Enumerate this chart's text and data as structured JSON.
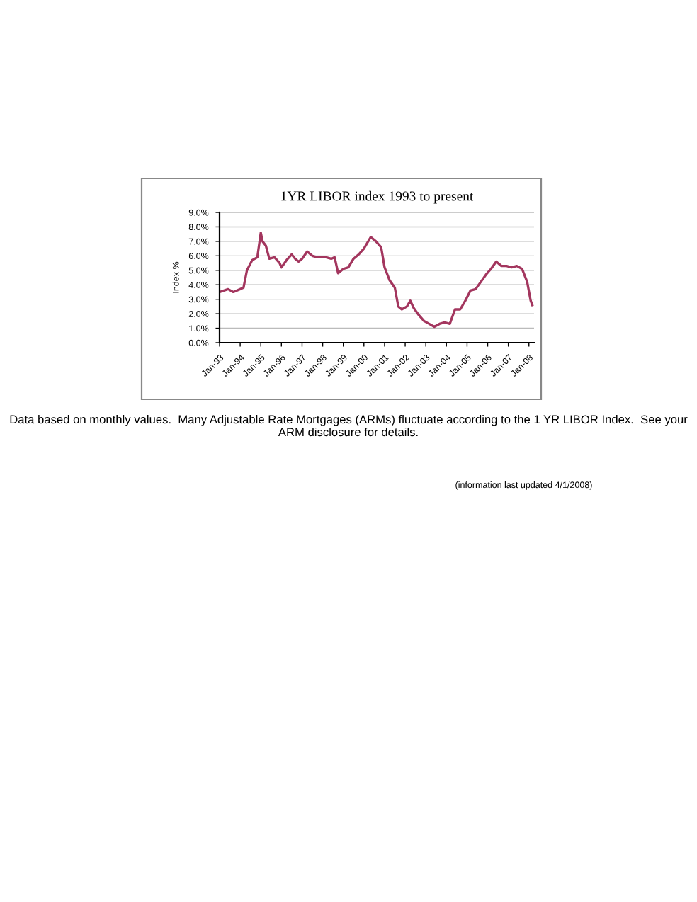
{
  "chart_data": {
    "type": "line",
    "title": "1YR LIBOR index 1993 to present",
    "ylabel": "Index %",
    "annotations": [
      "Data based on monthly values.  Many Adjustable Rate Mortgages (ARMs) fluctuate according to the 1 YR LIBOR Index.  See your ARM disclosure for details.",
      "(information last updated 4/1/2008)"
    ],
    "x": [
      "1993-01",
      "1993-06",
      "1993-09",
      "1994-01",
      "1994-03",
      "1994-05",
      "1994-08",
      "1994-11",
      "1995-01",
      "1995-02",
      "1995-04",
      "1995-06",
      "1995-09",
      "1995-12",
      "1996-01",
      "1996-04",
      "1996-07",
      "1996-09",
      "1996-11",
      "1997-01",
      "1997-04",
      "1997-07",
      "1997-10",
      "1998-01",
      "1998-03",
      "1998-06",
      "1998-08",
      "1998-10",
      "1999-01",
      "1999-04",
      "1999-07",
      "1999-10",
      "2000-01",
      "2000-05",
      "2000-08",
      "2000-11",
      "2001-01",
      "2001-04",
      "2001-07",
      "2001-09",
      "2001-11",
      "2002-02",
      "2002-04",
      "2002-06",
      "2002-09",
      "2002-12",
      "2003-03",
      "2003-06",
      "2003-09",
      "2003-12",
      "2004-03",
      "2004-06",
      "2004-09",
      "2004-12",
      "2005-03",
      "2005-06",
      "2005-09",
      "2005-12",
      "2006-03",
      "2006-06",
      "2006-09",
      "2006-12",
      "2007-03",
      "2007-06",
      "2007-09",
      "2007-12",
      "2008-02",
      "2008-03"
    ],
    "series": [
      {
        "color": "#a3365e",
        "values": [
          3.5,
          3.7,
          3.5,
          3.7,
          3.8,
          5.0,
          5.7,
          5.9,
          7.6,
          7.0,
          6.7,
          5.8,
          5.9,
          5.5,
          5.2,
          5.7,
          6.1,
          5.8,
          5.6,
          5.8,
          6.3,
          6.0,
          5.9,
          5.9,
          5.9,
          5.8,
          5.9,
          4.8,
          5.1,
          5.2,
          5.8,
          6.1,
          6.5,
          7.3,
          7.0,
          6.6,
          5.2,
          4.3,
          3.8,
          2.5,
          2.3,
          2.5,
          2.9,
          2.4,
          1.9,
          1.5,
          1.3,
          1.1,
          1.3,
          1.4,
          1.3,
          2.3,
          2.3,
          2.9,
          3.6,
          3.7,
          4.2,
          4.7,
          5.1,
          5.6,
          5.3,
          5.3,
          5.2,
          5.3,
          5.1,
          4.2,
          2.9,
          2.6
        ]
      }
    ],
    "xlim": [
      "1993-01",
      "2008-04"
    ],
    "xticks": [
      {
        "value": "1993-01",
        "label": "Jan-93"
      },
      {
        "value": "1994-01",
        "label": "Jan-94"
      },
      {
        "value": "1995-01",
        "label": "Jan-95"
      },
      {
        "value": "1996-01",
        "label": "Jan-96"
      },
      {
        "value": "1997-01",
        "label": "Jan-97"
      },
      {
        "value": "1998-01",
        "label": "Jan-98"
      },
      {
        "value": "1999-01",
        "label": "Jan-99"
      },
      {
        "value": "2000-01",
        "label": "Jan-00"
      },
      {
        "value": "2001-01",
        "label": "Jan-01"
      },
      {
        "value": "2002-01",
        "label": "Jan-02"
      },
      {
        "value": "2003-01",
        "label": "Jan-03"
      },
      {
        "value": "2004-01",
        "label": "Jan-04"
      },
      {
        "value": "2005-01",
        "label": "Jan-05"
      },
      {
        "value": "2006-01",
        "label": "Jan-06"
      },
      {
        "value": "2007-01",
        "label": "Jan-07"
      },
      {
        "value": "2008-01",
        "label": "Jan-08"
      }
    ],
    "ylim": [
      0,
      9
    ],
    "yticks": [
      {
        "value": 0,
        "label": "0.0%"
      },
      {
        "value": 1,
        "label": "1.0%"
      },
      {
        "value": 2,
        "label": "2.0%"
      },
      {
        "value": 3,
        "label": "3.0%"
      },
      {
        "value": 4,
        "label": "4.0%"
      },
      {
        "value": 5,
        "label": "5.0%"
      },
      {
        "value": 6,
        "label": "6.0%"
      },
      {
        "value": 7,
        "label": "7.0%"
      },
      {
        "value": 8,
        "label": "8.0%"
      },
      {
        "value": 9,
        "label": "9.0%"
      }
    ],
    "grid": "y",
    "marker": "none",
    "line_style": "solid",
    "legend": false
  }
}
